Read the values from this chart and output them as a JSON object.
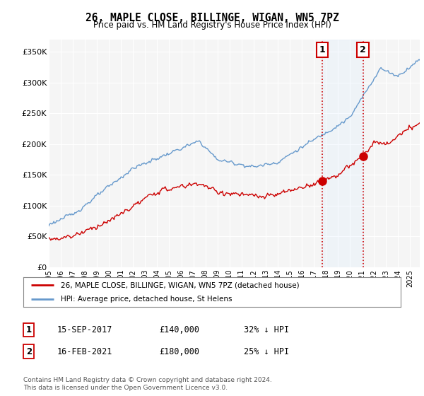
{
  "title": "26, MAPLE CLOSE, BILLINGE, WIGAN, WN5 7PZ",
  "subtitle": "Price paid vs. HM Land Registry's House Price Index (HPI)",
  "ylabel_ticks": [
    "£0",
    "£50K",
    "£100K",
    "£150K",
    "£200K",
    "£250K",
    "£300K",
    "£350K"
  ],
  "ytick_values": [
    0,
    50000,
    100000,
    150000,
    200000,
    250000,
    300000,
    350000
  ],
  "ylim": [
    0,
    370000
  ],
  "xlim_start": 1995.0,
  "xlim_end": 2025.8,
  "hpi_color": "#6699cc",
  "price_color": "#cc0000",
  "transaction1_x": 2017.708,
  "transaction1_y": 140000,
  "transaction2_x": 2021.083,
  "transaction2_y": 180000,
  "legend_label1": "26, MAPLE CLOSE, BILLINGE, WIGAN, WN5 7PZ (detached house)",
  "legend_label2": "HPI: Average price, detached house, St Helens",
  "table_row1": [
    "1",
    "15-SEP-2017",
    "£140,000",
    "32% ↓ HPI"
  ],
  "table_row2": [
    "2",
    "16-FEB-2021",
    "£180,000",
    "25% ↓ HPI"
  ],
  "footer": "Contains HM Land Registry data © Crown copyright and database right 2024.\nThis data is licensed under the Open Government Licence v3.0.",
  "background_color": "#ffffff",
  "plot_bg_color": "#f5f5f5",
  "grid_color": "#ffffff",
  "shade_color": "#ddeeff"
}
